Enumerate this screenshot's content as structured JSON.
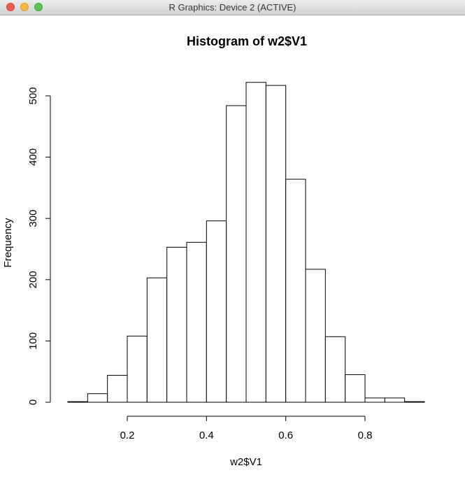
{
  "window": {
    "title": "R Graphics: Device 2 (ACTIVE)"
  },
  "chart_data": {
    "type": "histogram",
    "title": "Histogram of w2$V1",
    "x_label": "w2$V1",
    "y_label": "Frequency",
    "bins": [
      0.05,
      0.1,
      0.15,
      0.2,
      0.25,
      0.3,
      0.35,
      0.4,
      0.45,
      0.5,
      0.55,
      0.6,
      0.65,
      0.7,
      0.75,
      0.8,
      0.85,
      0.9,
      0.95
    ],
    "values": [
      1,
      14,
      44,
      108,
      203,
      253,
      261,
      296,
      484,
      522,
      517,
      364,
      217,
      107,
      45,
      7,
      7,
      1
    ],
    "color": "#ffffff",
    "xlim": [
      0.05,
      0.95
    ],
    "xticks": [
      0.2,
      0.4,
      0.6,
      0.8
    ],
    "ylim": [
      0,
      500
    ],
    "yticks": [
      0,
      100,
      200,
      300,
      400,
      500
    ]
  }
}
